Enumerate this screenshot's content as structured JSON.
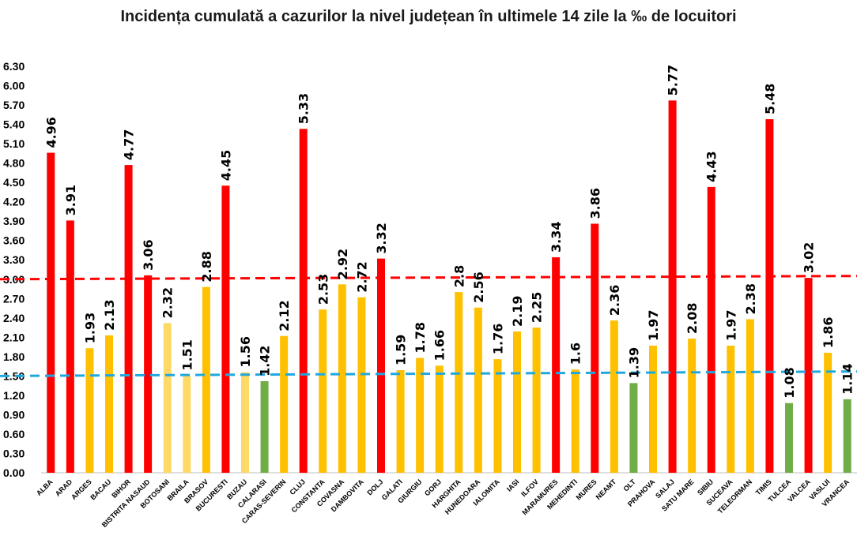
{
  "chart_data": {
    "type": "bar",
    "title": "Incidența cumulată a cazurilor la nivel județean în ultimele 14 zile la ‰ de locuitori",
    "xlabel": "",
    "ylabel": "",
    "ylim": [
      0,
      6.3
    ],
    "yticks": [
      "0.00",
      "0.30",
      "0.60",
      "0.90",
      "1.20",
      "1.50",
      "1.80",
      "2.10",
      "2.40",
      "2.70",
      "3.00",
      "3.30",
      "3.60",
      "3.90",
      "4.20",
      "4.50",
      "4.80",
      "5.10",
      "5.40",
      "5.70",
      "6.00",
      "6.30"
    ],
    "grid": false,
    "legend": "none",
    "categories": [
      "ALBA",
      "ARAD",
      "ARGES",
      "BACAU",
      "BIHOR",
      "BISTRITA NASAUD",
      "BOTOSANI",
      "BRAILA",
      "BRASOV",
      "BUCURESTI",
      "BUZAU",
      "CALARASI",
      "CARAS-SEVERIN",
      "CLUJ",
      "CONSTANTA",
      "COVASNA",
      "DAMBOVITA",
      "DOLJ",
      "GALATI",
      "GIURGIU",
      "GORJ",
      "HARGHITA",
      "HUNEDOARA",
      "IALOMITA",
      "IASI",
      "ILFOV",
      "MARAMURES",
      "MEHEDINTI",
      "MURES",
      "NEAMT",
      "OLT",
      "PRAHOVA",
      "SALAJ",
      "SATU MARE",
      "SIBIU",
      "SUCEAVA",
      "TELEORMAN",
      "TIMIS",
      "TULCEA",
      "VALCEA",
      "VASLUI",
      "VRANCEA"
    ],
    "values": [
      4.96,
      3.91,
      1.93,
      2.13,
      4.77,
      3.06,
      2.32,
      1.51,
      2.88,
      4.45,
      1.56,
      1.42,
      2.12,
      5.33,
      2.53,
      2.92,
      2.72,
      3.32,
      1.59,
      1.78,
      1.66,
      2.8,
      2.56,
      1.76,
      2.19,
      2.25,
      3.34,
      1.6,
      3.86,
      2.36,
      1.39,
      1.97,
      5.77,
      2.08,
      4.43,
      1.97,
      2.38,
      5.48,
      1.08,
      3.02,
      1.86,
      1.14
    ],
    "value_labels": [
      "4.96",
      "3.91",
      "1.93",
      "2.13",
      "4.77",
      "3.06",
      "2.32",
      "1.51",
      "2.88",
      "4.45",
      "1.56",
      "1.42",
      "2.12",
      "5.33",
      "2.53",
      "2.92",
      "2.72",
      "3.32",
      "1.59",
      "1.78",
      "1.66",
      "2.8",
      "2.56",
      "1.76",
      "2.19",
      "2.25",
      "3.34",
      "1.6",
      "3.86",
      "2.36",
      "1.39",
      "1.97",
      "5.77",
      "2.08",
      "4.43",
      "1.97",
      "2.38",
      "5.48",
      "1.08",
      "3.02",
      "1.86",
      "1.14"
    ],
    "bar_colors": [
      "#ff0000",
      "#ff0000",
      "#ffc000",
      "#ffc000",
      "#ff0000",
      "#ff0000",
      "#ffd966",
      "#ffd966",
      "#ffc000",
      "#ff0000",
      "#ffd966",
      "#70ad47",
      "#ffc000",
      "#ff0000",
      "#ffc000",
      "#ffc000",
      "#ffc000",
      "#ff0000",
      "#ffc000",
      "#ffc000",
      "#ffc000",
      "#ffc000",
      "#ffc000",
      "#ffc000",
      "#ffc000",
      "#ffc000",
      "#ff0000",
      "#ffc000",
      "#ff0000",
      "#ffc000",
      "#70ad47",
      "#ffc000",
      "#ff0000",
      "#ffc000",
      "#ff0000",
      "#ffc000",
      "#ffc000",
      "#ff0000",
      "#70ad47",
      "#ff0000",
      "#ffc000",
      "#70ad47"
    ],
    "reference_lines": [
      {
        "value_start": 3.0,
        "value_end": 3.05,
        "color": "#ff0000",
        "style": "dashed"
      },
      {
        "value_start": 1.5,
        "value_end": 1.57,
        "color": "#1fa8e0",
        "style": "dashed"
      }
    ]
  }
}
